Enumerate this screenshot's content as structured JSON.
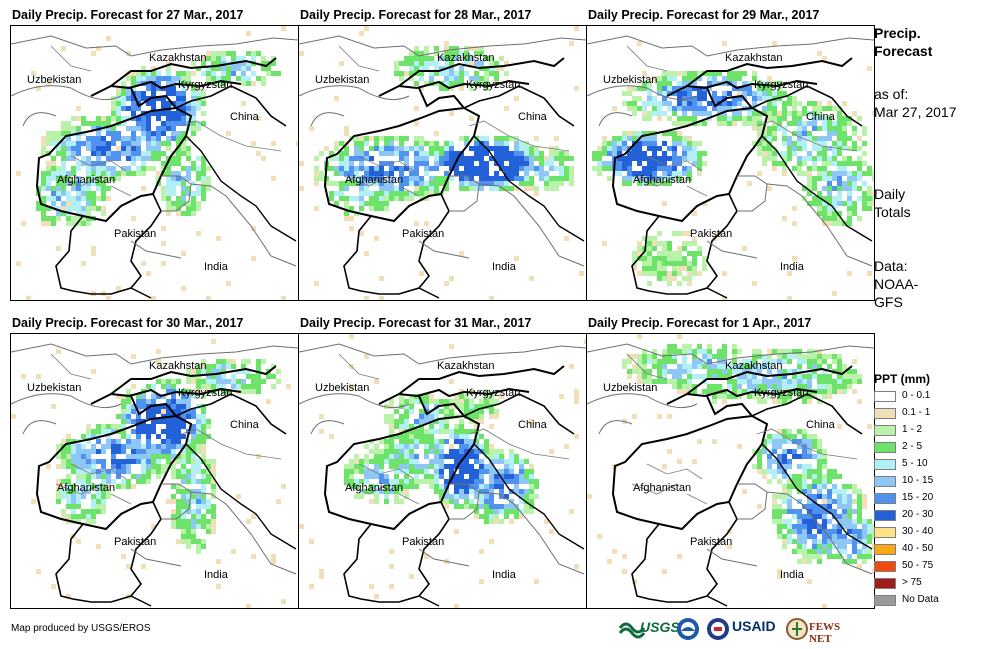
{
  "panels": [
    {
      "title": "Daily Precip. Forecast for 27 Mar., 2017",
      "pattern": "p1"
    },
    {
      "title": "Daily Precip. Forecast for 28 Mar., 2017",
      "pattern": "p2"
    },
    {
      "title": "Daily Precip. Forecast for 29 Mar., 2017",
      "pattern": "p3"
    },
    {
      "title": "Daily Precip. Forecast for 30 Mar., 2017",
      "pattern": "p4"
    },
    {
      "title": "Daily Precip. Forecast for 31 Mar., 2017",
      "pattern": "p5"
    },
    {
      "title": "Daily Precip. Forecast for 1 Apr., 2017",
      "pattern": "p6"
    }
  ],
  "map_labels": {
    "kazakhstan": "Kazakhstan",
    "uzbekistan": "Uzbekistan",
    "kyrgyzstan": "Kyrgyzstan",
    "china": "China",
    "afghanistan": "Afghanistan",
    "pakistan": "Pakistan",
    "india": "India"
  },
  "sidebar": {
    "title_line1": "Precip.",
    "title_line2": "Forecast",
    "asof_line1": "as of:",
    "asof_line2": "Mar 27, 2017",
    "period_line1": "Daily",
    "period_line2": "Totals",
    "source_line1": "Data:",
    "source_line2": "NOAA-",
    "source_line3": "GFS"
  },
  "legend": {
    "title": "PPT (mm)",
    "items": [
      {
        "label": "0 - 0.1",
        "color": "#ffffff"
      },
      {
        "label": "0.1 - 1",
        "color": "#f0dfb8"
      },
      {
        "label": "1 - 2",
        "color": "#b9f2a8"
      },
      {
        "label": "2 - 5",
        "color": "#6ee36a"
      },
      {
        "label": "5 - 10",
        "color": "#b3f0f5"
      },
      {
        "label": "10 - 15",
        "color": "#8ec6f5"
      },
      {
        "label": "15 - 20",
        "color": "#4f92f0"
      },
      {
        "label": "20 - 30",
        "color": "#2361d9"
      },
      {
        "label": "30 - 40",
        "color": "#fde28a"
      },
      {
        "label": "40 - 50",
        "color": "#fba519"
      },
      {
        "label": "50 - 75",
        "color": "#f04a12"
      },
      {
        "label": "> 75",
        "color": "#9e1c1c"
      },
      {
        "label": "No Data",
        "color": "#9a9a9a"
      }
    ]
  },
  "credit": "Map produced by USGS/EROS",
  "logos": {
    "usgs": "USGS",
    "usaid": "USAID",
    "fewsnet": "FEWS NET"
  }
}
